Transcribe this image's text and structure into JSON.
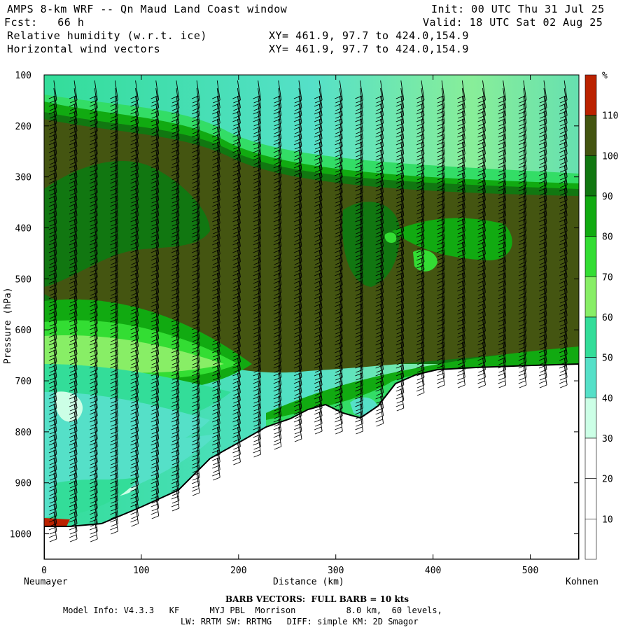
{
  "header": {
    "title": "AMPS 8-km WRF -- Qn Maud Land Coast window",
    "init": "Init: 00 UTC Thu 31 Jul 25",
    "fcst": "Fcst:   66 h",
    "valid": "Valid: 18 UTC Sat 02 Aug 25",
    "field1": "Relative humidity (w.r.t. ice)",
    "field2": "Horizontal wind vectors",
    "xy1": "XY= 461.9, 97.7 to 424.0,154.9",
    "xy2": "XY= 461.9, 97.7 to 424.0,154.9"
  },
  "footer": {
    "barb": "BARB VECTORS:  FULL BARB = 10 kts",
    "model1": "Model Info: V4.3.3   KF      MYJ PBL  Morrison          8.0 km,  60 levels,",
    "model2": "LW: RRTM SW: RRTMG   DIFF: simple KM: 2D Smagor"
  },
  "colorbar": {
    "unit": "%",
    "levels": [
      "10",
      "20",
      "30",
      "40",
      "50",
      "60",
      "70",
      "80",
      "90",
      "100",
      "110"
    ],
    "colors": [
      "#ffffff",
      "#ffffff",
      "#ffffff",
      "#ccffe6",
      "#55e0c8",
      "#33dd99",
      "#88ee66",
      "#33dd33",
      "#11aa11",
      "#117711",
      "#445511",
      "#bb2200"
    ]
  },
  "chart_data": {
    "type": "heatmap",
    "title": "Relative humidity (w.r.t. ice)",
    "xlabel": "Distance (km)",
    "ylabel": "Pressure (hPa)",
    "x_ticks": [
      0,
      100,
      200,
      300,
      400,
      500
    ],
    "y_ticks": [
      100,
      200,
      300,
      400,
      500,
      600,
      700,
      800,
      900,
      1000
    ],
    "xlim": [
      0,
      550
    ],
    "ylim": [
      1050,
      100
    ],
    "x_end_labels": {
      "left": "Neumayer",
      "right": "Kohnen"
    },
    "terrain_surface_hPa": {
      "x": [
        0,
        20,
        60,
        100,
        140,
        170,
        200,
        230,
        260,
        280,
        300,
        320,
        340,
        360,
        380,
        400,
        430,
        470,
        510,
        550
      ],
      "p": [
        985,
        985,
        980,
        955,
        920,
        875,
        835,
        810,
        790,
        770,
        768,
        780,
        765,
        730,
        705,
        690,
        685,
        682,
        680,
        678
      ]
    },
    "rh_bands_pct": {
      "upper_dry_layer_top_to_hPa_at_x": {
        "x": [
          0,
          100,
          200,
          300,
          400,
          500,
          550
        ],
        "p": [
          165,
          180,
          210,
          270,
          300,
          325,
          330
        ]
      },
      "moist_core_pct": "90-110"
    }
  }
}
